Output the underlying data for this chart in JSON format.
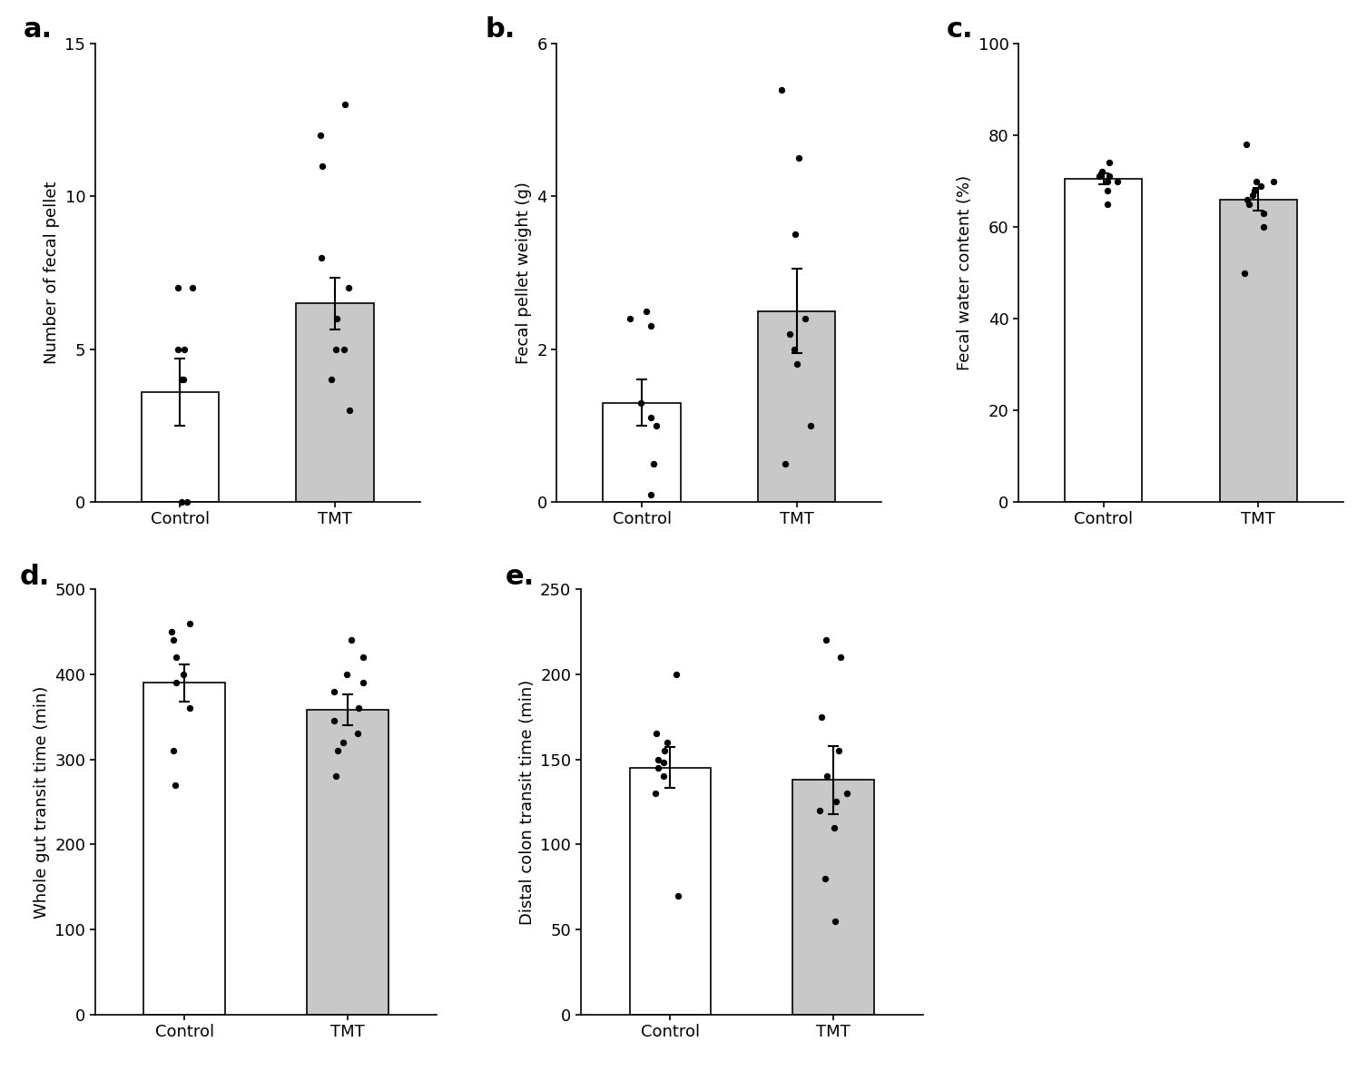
{
  "panel_a": {
    "label": "a.",
    "ylabel": "Number of fecal pellet",
    "ylim": [
      0,
      15
    ],
    "yticks": [
      0,
      5,
      10,
      15
    ],
    "categories": [
      "Control",
      "TMT"
    ],
    "bar_means": [
      3.6,
      6.5
    ],
    "bar_sems": [
      1.1,
      0.85
    ],
    "bar_colors": [
      "#ffffff",
      "#c8c8c8"
    ],
    "control_dots": [
      0,
      0,
      4,
      4,
      5,
      5,
      7,
      7
    ],
    "tmt_dots": [
      3,
      4,
      5,
      5,
      6,
      7,
      8,
      11,
      12,
      13
    ]
  },
  "panel_b": {
    "label": "b.",
    "ylabel": "Fecal pellet weight (g)",
    "ylim": [
      0,
      6
    ],
    "yticks": [
      0,
      2,
      4,
      6
    ],
    "categories": [
      "Control",
      "TMT"
    ],
    "bar_means": [
      1.3,
      2.5
    ],
    "bar_sems": [
      0.3,
      0.55
    ],
    "bar_colors": [
      "#ffffff",
      "#c8c8c8"
    ],
    "control_dots": [
      0.1,
      0.5,
      1.0,
      1.1,
      1.3,
      2.3,
      2.4,
      2.5
    ],
    "tmt_dots": [
      0.5,
      1.0,
      1.8,
      2.0,
      2.2,
      2.4,
      3.5,
      4.5,
      5.4
    ]
  },
  "panel_c": {
    "label": "c.",
    "ylabel": "Fecal water content (%)",
    "ylim": [
      0,
      100
    ],
    "yticks": [
      0,
      20,
      40,
      60,
      80,
      100
    ],
    "categories": [
      "Control",
      "TMT"
    ],
    "bar_means": [
      70.5,
      66.0
    ],
    "bar_sems": [
      1.2,
      2.5
    ],
    "bar_colors": [
      "#ffffff",
      "#c8c8c8"
    ],
    "control_dots": [
      65,
      68,
      70,
      70,
      71,
      71,
      72,
      74
    ],
    "tmt_dots": [
      50,
      60,
      63,
      65,
      66,
      67,
      68,
      69,
      70,
      70,
      78
    ]
  },
  "panel_d": {
    "label": "d.",
    "ylabel": "Whole gut transit time (min)",
    "ylim": [
      0,
      500
    ],
    "yticks": [
      0,
      100,
      200,
      300,
      400,
      500
    ],
    "categories": [
      "Control",
      "TMT"
    ],
    "bar_means": [
      390,
      358
    ],
    "bar_sems": [
      22,
      18
    ],
    "bar_colors": [
      "#ffffff",
      "#c8c8c8"
    ],
    "control_dots": [
      270,
      310,
      360,
      390,
      400,
      420,
      440,
      450,
      460
    ],
    "tmt_dots": [
      280,
      310,
      320,
      330,
      345,
      360,
      380,
      390,
      400,
      420,
      440
    ]
  },
  "panel_e": {
    "label": "e.",
    "ylabel": "Distal colon transit time (min)",
    "ylim": [
      0,
      250
    ],
    "yticks": [
      0,
      50,
      100,
      150,
      200,
      250
    ],
    "categories": [
      "Control",
      "TMT"
    ],
    "bar_means": [
      145,
      138
    ],
    "bar_sems": [
      12,
      20
    ],
    "bar_colors": [
      "#ffffff",
      "#c8c8c8"
    ],
    "control_dots": [
      70,
      130,
      140,
      145,
      148,
      150,
      155,
      160,
      165,
      200
    ],
    "tmt_dots": [
      55,
      80,
      110,
      120,
      125,
      130,
      140,
      155,
      175,
      210,
      220
    ]
  },
  "dot_color": "#000000",
  "dot_size": 28,
  "bar_edge_color": "#000000",
  "bar_width": 0.5,
  "capsize": 4,
  "error_color": "#000000",
  "error_linewidth": 1.5,
  "tick_fontsize": 13,
  "ylabel_fontsize": 13,
  "panel_label_fontsize": 22,
  "xticklabel_fontsize": 13
}
